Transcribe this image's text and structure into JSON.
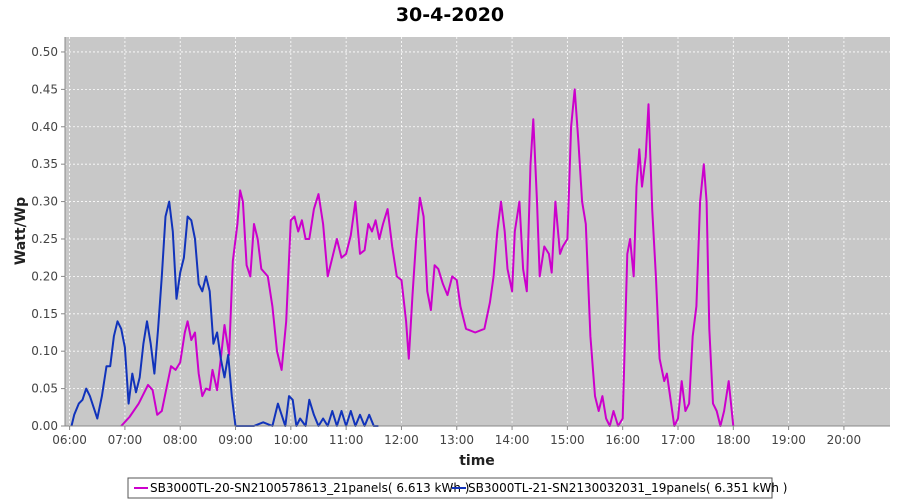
{
  "chart_data": {
    "type": "line",
    "title": "30-4-2020",
    "xlabel": "time",
    "ylabel": "Watt/Wp",
    "xlim": [
      "05:55",
      "20:50"
    ],
    "ylim": [
      0,
      0.52
    ],
    "grid": true,
    "legend_position": "bottom",
    "x_ticks": [
      "06:00",
      "07:00",
      "08:00",
      "09:00",
      "10:00",
      "11:00",
      "12:00",
      "13:00",
      "14:00",
      "15:00",
      "16:00",
      "17:00",
      "18:00",
      "19:00",
      "20:00"
    ],
    "y_ticks": [
      "0.00",
      "0.05",
      "0.10",
      "0.15",
      "0.20",
      "0.25",
      "0.30",
      "0.35",
      "0.40",
      "0.45",
      "0.50"
    ],
    "series": [
      {
        "name": "SB3000TL-20-SN2100578613_21panels( 6.613 kWh )",
        "color": "#cc00cc",
        "points": [
          [
            "06:56",
            0.0
          ],
          [
            "07:05",
            0.012
          ],
          [
            "07:15",
            0.03
          ],
          [
            "07:25",
            0.055
          ],
          [
            "07:30",
            0.048
          ],
          [
            "07:35",
            0.015
          ],
          [
            "07:40",
            0.02
          ],
          [
            "07:45",
            0.05
          ],
          [
            "07:50",
            0.08
          ],
          [
            "07:55",
            0.075
          ],
          [
            "08:00",
            0.085
          ],
          [
            "08:05",
            0.125
          ],
          [
            "08:08",
            0.14
          ],
          [
            "08:12",
            0.115
          ],
          [
            "08:16",
            0.125
          ],
          [
            "08:20",
            0.07
          ],
          [
            "08:24",
            0.04
          ],
          [
            "08:28",
            0.05
          ],
          [
            "08:32",
            0.048
          ],
          [
            "08:35",
            0.075
          ],
          [
            "08:40",
            0.048
          ],
          [
            "08:44",
            0.09
          ],
          [
            "08:48",
            0.135
          ],
          [
            "08:53",
            0.095
          ],
          [
            "08:57",
            0.22
          ],
          [
            "09:02",
            0.27
          ],
          [
            "09:05",
            0.315
          ],
          [
            "09:08",
            0.3
          ],
          [
            "09:12",
            0.215
          ],
          [
            "09:16",
            0.2
          ],
          [
            "09:20",
            0.27
          ],
          [
            "09:24",
            0.25
          ],
          [
            "09:28",
            0.21
          ],
          [
            "09:35",
            0.2
          ],
          [
            "09:40",
            0.16
          ],
          [
            "09:45",
            0.1
          ],
          [
            "09:50",
            0.075
          ],
          [
            "09:55",
            0.14
          ],
          [
            "10:00",
            0.275
          ],
          [
            "10:04",
            0.28
          ],
          [
            "10:08",
            0.26
          ],
          [
            "10:12",
            0.275
          ],
          [
            "10:16",
            0.25
          ],
          [
            "10:20",
            0.25
          ],
          [
            "10:25",
            0.29
          ],
          [
            "10:30",
            0.31
          ],
          [
            "10:35",
            0.27
          ],
          [
            "10:40",
            0.2
          ],
          [
            "10:45",
            0.225
          ],
          [
            "10:50",
            0.25
          ],
          [
            "10:55",
            0.225
          ],
          [
            "11:00",
            0.23
          ],
          [
            "11:05",
            0.255
          ],
          [
            "11:10",
            0.3
          ],
          [
            "11:15",
            0.23
          ],
          [
            "11:20",
            0.235
          ],
          [
            "11:24",
            0.27
          ],
          [
            "11:28",
            0.26
          ],
          [
            "11:32",
            0.275
          ],
          [
            "11:36",
            0.25
          ],
          [
            "11:40",
            0.27
          ],
          [
            "11:45",
            0.29
          ],
          [
            "11:50",
            0.24
          ],
          [
            "11:55",
            0.2
          ],
          [
            "12:00",
            0.195
          ],
          [
            "12:05",
            0.14
          ],
          [
            "12:08",
            0.09
          ],
          [
            "12:12",
            0.175
          ],
          [
            "12:16",
            0.25
          ],
          [
            "12:20",
            0.305
          ],
          [
            "12:24",
            0.28
          ],
          [
            "12:28",
            0.18
          ],
          [
            "12:32",
            0.155
          ],
          [
            "12:36",
            0.215
          ],
          [
            "12:40",
            0.21
          ],
          [
            "12:45",
            0.19
          ],
          [
            "12:50",
            0.175
          ],
          [
            "12:55",
            0.2
          ],
          [
            "13:00",
            0.195
          ],
          [
            "13:04",
            0.16
          ],
          [
            "13:10",
            0.13
          ],
          [
            "13:20",
            0.125
          ],
          [
            "13:30",
            0.13
          ],
          [
            "13:36",
            0.165
          ],
          [
            "13:40",
            0.2
          ],
          [
            "13:44",
            0.26
          ],
          [
            "13:48",
            0.3
          ],
          [
            "13:52",
            0.26
          ],
          [
            "13:55",
            0.21
          ],
          [
            "14:00",
            0.18
          ],
          [
            "14:03",
            0.26
          ],
          [
            "14:08",
            0.3
          ],
          [
            "14:12",
            0.21
          ],
          [
            "14:16",
            0.18
          ],
          [
            "14:20",
            0.35
          ],
          [
            "14:23",
            0.41
          ],
          [
            "14:27",
            0.3
          ],
          [
            "14:30",
            0.2
          ],
          [
            "14:35",
            0.24
          ],
          [
            "14:40",
            0.23
          ],
          [
            "14:43",
            0.205
          ],
          [
            "14:47",
            0.3
          ],
          [
            "14:52",
            0.23
          ],
          [
            "14:55",
            0.24
          ],
          [
            "15:00",
            0.25
          ],
          [
            "15:04",
            0.4
          ],
          [
            "15:08",
            0.45
          ],
          [
            "15:12",
            0.38
          ],
          [
            "15:16",
            0.3
          ],
          [
            "15:20",
            0.27
          ],
          [
            "15:25",
            0.12
          ],
          [
            "15:30",
            0.04
          ],
          [
            "15:34",
            0.02
          ],
          [
            "15:38",
            0.04
          ],
          [
            "15:42",
            0.01
          ],
          [
            "15:46",
            0.0
          ],
          [
            "15:50",
            0.02
          ],
          [
            "15:55",
            0.0
          ],
          [
            "16:00",
            0.01
          ],
          [
            "16:05",
            0.23
          ],
          [
            "16:08",
            0.25
          ],
          [
            "16:12",
            0.2
          ],
          [
            "16:15",
            0.32
          ],
          [
            "16:18",
            0.37
          ],
          [
            "16:21",
            0.32
          ],
          [
            "16:25",
            0.36
          ],
          [
            "16:28",
            0.43
          ],
          [
            "16:32",
            0.29
          ],
          [
            "16:36",
            0.2
          ],
          [
            "16:40",
            0.09
          ],
          [
            "16:45",
            0.06
          ],
          [
            "16:48",
            0.07
          ],
          [
            "16:52",
            0.035
          ],
          [
            "16:56",
            0.0
          ],
          [
            "17:00",
            0.01
          ],
          [
            "17:04",
            0.06
          ],
          [
            "17:08",
            0.02
          ],
          [
            "17:12",
            0.03
          ],
          [
            "17:16",
            0.12
          ],
          [
            "17:20",
            0.16
          ],
          [
            "17:24",
            0.3
          ],
          [
            "17:28",
            0.35
          ],
          [
            "17:31",
            0.3
          ],
          [
            "17:34",
            0.13
          ],
          [
            "17:38",
            0.03
          ],
          [
            "17:42",
            0.02
          ],
          [
            "17:46",
            0.0
          ],
          [
            "17:50",
            0.02
          ],
          [
            "17:55",
            0.06
          ],
          [
            "18:00",
            0.0
          ]
        ]
      },
      {
        "name": "SB3000TL-21-SN2130032031_19panels( 6.351 kWh )",
        "color": "#1133bb",
        "points": [
          [
            "06:02",
            0.0
          ],
          [
            "06:05",
            0.015
          ],
          [
            "06:10",
            0.03
          ],
          [
            "06:14",
            0.035
          ],
          [
            "06:18",
            0.05
          ],
          [
            "06:22",
            0.04
          ],
          [
            "06:26",
            0.025
          ],
          [
            "06:30",
            0.01
          ],
          [
            "06:35",
            0.04
          ],
          [
            "06:40",
            0.08
          ],
          [
            "06:44",
            0.08
          ],
          [
            "06:48",
            0.12
          ],
          [
            "06:52",
            0.14
          ],
          [
            "06:56",
            0.13
          ],
          [
            "07:00",
            0.105
          ],
          [
            "07:04",
            0.03
          ],
          [
            "07:08",
            0.07
          ],
          [
            "07:12",
            0.045
          ],
          [
            "07:16",
            0.065
          ],
          [
            "07:20",
            0.11
          ],
          [
            "07:24",
            0.14
          ],
          [
            "07:28",
            0.11
          ],
          [
            "07:32",
            0.07
          ],
          [
            "07:36",
            0.13
          ],
          [
            "07:40",
            0.2
          ],
          [
            "07:44",
            0.28
          ],
          [
            "07:48",
            0.3
          ],
          [
            "07:52",
            0.26
          ],
          [
            "07:56",
            0.17
          ],
          [
            "08:00",
            0.205
          ],
          [
            "08:04",
            0.225
          ],
          [
            "08:08",
            0.28
          ],
          [
            "08:12",
            0.275
          ],
          [
            "08:16",
            0.25
          ],
          [
            "08:20",
            0.19
          ],
          [
            "08:24",
            0.18
          ],
          [
            "08:28",
            0.2
          ],
          [
            "08:32",
            0.18
          ],
          [
            "08:36",
            0.11
          ],
          [
            "08:40",
            0.125
          ],
          [
            "08:44",
            0.09
          ],
          [
            "08:48",
            0.065
          ],
          [
            "08:52",
            0.095
          ],
          [
            "08:56",
            0.04
          ],
          [
            "09:00",
            0.0
          ],
          [
            "09:10",
            0.0
          ],
          [
            "09:20",
            0.0
          ],
          [
            "09:30",
            0.005
          ],
          [
            "09:40",
            0.0
          ],
          [
            "09:46",
            0.03
          ],
          [
            "09:50",
            0.015
          ],
          [
            "09:54",
            0.0
          ],
          [
            "09:58",
            0.04
          ],
          [
            "10:02",
            0.035
          ],
          [
            "10:06",
            0.0
          ],
          [
            "10:10",
            0.01
          ],
          [
            "10:16",
            0.0
          ],
          [
            "10:20",
            0.035
          ],
          [
            "10:25",
            0.015
          ],
          [
            "10:30",
            0.0
          ],
          [
            "10:35",
            0.01
          ],
          [
            "10:40",
            0.0
          ],
          [
            "10:45",
            0.02
          ],
          [
            "10:50",
            0.0
          ],
          [
            "10:55",
            0.02
          ],
          [
            "11:00",
            0.0
          ],
          [
            "11:05",
            0.02
          ],
          [
            "11:10",
            0.0
          ],
          [
            "11:15",
            0.015
          ],
          [
            "11:20",
            0.0
          ],
          [
            "11:25",
            0.015
          ],
          [
            "11:30",
            0.0
          ],
          [
            "11:35",
            0.0
          ]
        ]
      }
    ]
  }
}
